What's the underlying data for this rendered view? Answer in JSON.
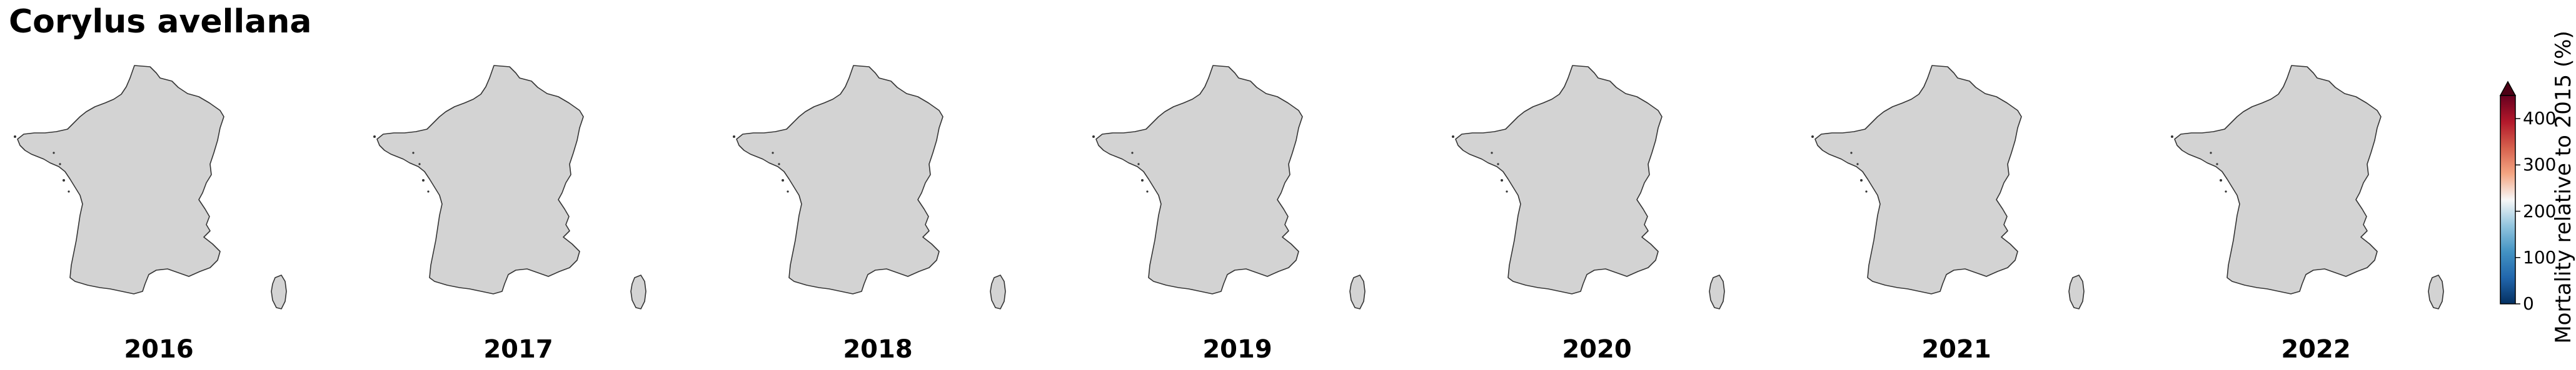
{
  "title": "Corylus avellana",
  "land_color": "#d3d3d3",
  "border_color": "#333333",
  "panels": [
    {
      "year": "2016"
    },
    {
      "year": "2017"
    },
    {
      "year": "2018"
    },
    {
      "year": "2019"
    },
    {
      "year": "2020"
    },
    {
      "year": "2021"
    },
    {
      "year": "2022"
    }
  ],
  "colorbar": {
    "label": "Mortality relative to 2015 (%)",
    "ticks": [
      {
        "value": 0,
        "label": "0"
      },
      {
        "value": 100,
        "label": "100"
      },
      {
        "value": 200,
        "label": "200"
      },
      {
        "value": 300,
        "label": "300"
      },
      {
        "value": 400,
        "label": "400"
      }
    ],
    "range": [
      0,
      450
    ],
    "extend": "max",
    "colormap": "RdBu_r",
    "stops": [
      "#053061",
      "#2166ac",
      "#4393c3",
      "#92c5de",
      "#f7f7f7",
      "#f4a582",
      "#d6604d",
      "#b2182b",
      "#67001f"
    ],
    "extend_color": "#4d0015"
  }
}
